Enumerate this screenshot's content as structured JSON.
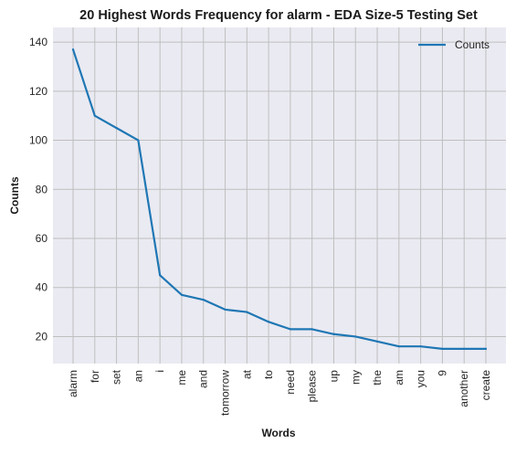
{
  "chart_data": {
    "type": "line",
    "title": "20 Highest Words Frequency for alarm - EDA Size-5 Testing Set",
    "xlabel": "Words",
    "ylabel": "Counts",
    "categories": [
      "alarm",
      "for",
      "set",
      "an",
      "i",
      "me",
      "and",
      "tomorrow",
      "at",
      "to",
      "need",
      "please",
      "up",
      "my",
      "the",
      "am",
      "you",
      "9",
      "another",
      "create"
    ],
    "series": [
      {
        "name": "Counts",
        "values": [
          137,
          110,
          105,
          100,
          45,
          37,
          35,
          31,
          30,
          26,
          23,
          23,
          21,
          20,
          18,
          16,
          16,
          15,
          15,
          15
        ],
        "color": "#1f77b4"
      }
    ],
    "ylim": [
      9,
      146
    ],
    "yticks": [
      20,
      40,
      60,
      80,
      100,
      120,
      140
    ],
    "grid": true,
    "legend": "top-right",
    "background_color": "#eaeaf2",
    "grid_color": "#bfbfbf"
  }
}
